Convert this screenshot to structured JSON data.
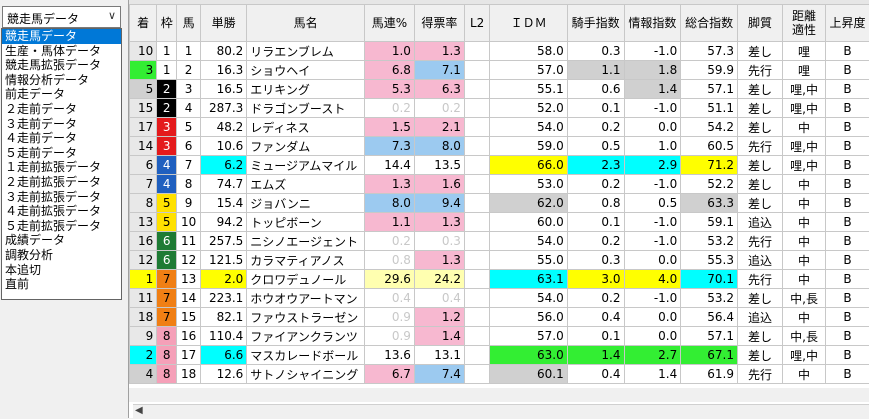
{
  "combo": {
    "value": "競走馬データ",
    "arrow": "∨"
  },
  "menu": {
    "items": [
      "競走馬データ",
      "生産・馬体データ",
      "競走馬拡張データ",
      "情報分析データ",
      "前走データ",
      "２走前データ",
      "３走前データ",
      "４走前データ",
      "５走前データ",
      "１走前拡張データ",
      "２走前拡張データ",
      "３走前拡張データ",
      "４走前拡張データ",
      "５走前拡張データ",
      "成績データ",
      "調教分析",
      "本追切",
      "直前"
    ],
    "selected_index": 0
  },
  "headers": {
    "chaku": "着",
    "waku": "枠",
    "uma": "馬",
    "tansho": "単勝",
    "name": "馬名",
    "renritsu": "馬連%",
    "tokuhyo": "得票率",
    "l2": "L2",
    "idm": "ＩＤＭ",
    "kishu": "騎手指数",
    "joho": "情報指数",
    "sogo": "総合指数",
    "kyakushitsu": "脚質",
    "kyori": "距離適性",
    "joshodo": "上昇度"
  },
  "colors": {
    "pink": "#f7b8d0",
    "blue": "#9ccaf0",
    "yellow": "#ffff00",
    "cyan": "#00ffff",
    "green": "#33ee33",
    "gray": "#d0d0d0",
    "lightyellow": "#ffffb0"
  },
  "rows": [
    {
      "chaku": "10",
      "waku": "1",
      "uma": "1",
      "tansho": "80.2",
      "name": "リラエンブレム",
      "renritsu": "1.0",
      "tokuhyo": "1.3",
      "idm": "58.0",
      "kishu": "0.3",
      "joho": "-1.0",
      "sogo": "57.3",
      "kyakushitsu": "差し",
      "kyori": "哩",
      "joshodo": "B",
      "bg": {
        "renritsu": "pink",
        "tokuhyo": "pink"
      }
    },
    {
      "chaku": "3",
      "waku": "1",
      "uma": "2",
      "tansho": "16.3",
      "name": "ショウヘイ",
      "renritsu": "6.8",
      "tokuhyo": "7.1",
      "idm": "57.0",
      "kishu": "1.1",
      "joho": "1.8",
      "sogo": "59.9",
      "kyakushitsu": "先行",
      "kyori": "哩",
      "joshodo": "B",
      "bg": {
        "chaku": "green",
        "renritsu": "pink",
        "tokuhyo": "blue",
        "kishu": "gray",
        "joho": "gray"
      }
    },
    {
      "chaku": "5",
      "waku": "2",
      "uma": "3",
      "tansho": "16.5",
      "name": "エリキング",
      "renritsu": "5.3",
      "tokuhyo": "6.3",
      "idm": "55.1",
      "kishu": "0.6",
      "joho": "1.4",
      "sogo": "57.1",
      "kyakushitsu": "差し",
      "kyori": "哩,中",
      "joshodo": "B",
      "bg": {
        "chaku": "gray",
        "renritsu": "pink",
        "tokuhyo": "pink",
        "joho": "gray"
      }
    },
    {
      "chaku": "15",
      "waku": "2",
      "uma": "4",
      "tansho": "287.3",
      "name": "ドラゴンブースト",
      "renritsu": "0.2",
      "tokuhyo": "0.2",
      "idm": "52.0",
      "kishu": "0.1",
      "joho": "-1.0",
      "sogo": "51.1",
      "kyakushitsu": "差し",
      "kyori": "哩,中",
      "joshodo": "B",
      "dim": [
        "renritsu",
        "tokuhyo"
      ]
    },
    {
      "chaku": "17",
      "waku": "3",
      "uma": "5",
      "tansho": "48.2",
      "name": "レディネス",
      "renritsu": "1.5",
      "tokuhyo": "2.1",
      "idm": "54.0",
      "kishu": "0.2",
      "joho": "0.0",
      "sogo": "54.2",
      "kyakushitsu": "差し",
      "kyori": "中",
      "joshodo": "B",
      "bg": {
        "renritsu": "pink",
        "tokuhyo": "pink"
      }
    },
    {
      "chaku": "14",
      "waku": "3",
      "uma": "6",
      "tansho": "10.6",
      "name": "ファンダム",
      "renritsu": "7.3",
      "tokuhyo": "8.0",
      "idm": "59.0",
      "kishu": "0.5",
      "joho": "1.0",
      "sogo": "60.5",
      "kyakushitsu": "先行",
      "kyori": "哩,中",
      "joshodo": "B",
      "bg": {
        "renritsu": "blue",
        "tokuhyo": "blue"
      }
    },
    {
      "chaku": "6",
      "waku": "4",
      "uma": "7",
      "tansho": "6.2",
      "name": "ミュージアムマイル",
      "renritsu": "14.4",
      "tokuhyo": "13.5",
      "idm": "66.0",
      "kishu": "2.3",
      "joho": "2.9",
      "sogo": "71.2",
      "kyakushitsu": "差し",
      "kyori": "哩,中",
      "joshodo": "B",
      "bg": {
        "tansho": "cyan",
        "idm": "yellow",
        "kishu": "cyan",
        "joho": "cyan",
        "sogo": "yellow"
      }
    },
    {
      "chaku": "7",
      "waku": "4",
      "uma": "8",
      "tansho": "74.7",
      "name": "エムズ",
      "renritsu": "1.3",
      "tokuhyo": "1.6",
      "idm": "53.0",
      "kishu": "0.2",
      "joho": "-1.0",
      "sogo": "52.2",
      "kyakushitsu": "差し",
      "kyori": "中",
      "joshodo": "B",
      "bg": {
        "renritsu": "pink",
        "tokuhyo": "pink"
      }
    },
    {
      "chaku": "8",
      "waku": "5",
      "uma": "9",
      "tansho": "15.4",
      "name": "ジョバンニ",
      "renritsu": "8.0",
      "tokuhyo": "9.4",
      "idm": "62.0",
      "kishu": "0.8",
      "joho": "0.5",
      "sogo": "63.3",
      "kyakushitsu": "差し",
      "kyori": "中",
      "joshodo": "B",
      "bg": {
        "renritsu": "blue",
        "tokuhyo": "blue",
        "idm": "gray",
        "sogo": "gray"
      }
    },
    {
      "chaku": "13",
      "waku": "5",
      "uma": "10",
      "tansho": "94.2",
      "name": "トッピボーン",
      "renritsu": "1.1",
      "tokuhyo": "1.3",
      "idm": "60.0",
      "kishu": "0.1",
      "joho": "-1.0",
      "sogo": "59.1",
      "kyakushitsu": "追込",
      "kyori": "中",
      "joshodo": "B",
      "bg": {
        "renritsu": "pink",
        "tokuhyo": "pink"
      }
    },
    {
      "chaku": "16",
      "waku": "6",
      "uma": "11",
      "tansho": "257.5",
      "name": "ニシノエージェント",
      "renritsu": "0.2",
      "tokuhyo": "0.3",
      "idm": "54.0",
      "kishu": "0.2",
      "joho": "-1.0",
      "sogo": "53.2",
      "kyakushitsu": "先行",
      "kyori": "中",
      "joshodo": "B",
      "dim": [
        "renritsu",
        "tokuhyo"
      ]
    },
    {
      "chaku": "12",
      "waku": "6",
      "uma": "12",
      "tansho": "121.5",
      "name": "カラマティアノス",
      "renritsu": "0.8",
      "tokuhyo": "1.3",
      "idm": "55.0",
      "kishu": "0.3",
      "joho": "0.0",
      "sogo": "55.3",
      "kyakushitsu": "追込",
      "kyori": "中",
      "joshodo": "B",
      "bg": {
        "tokuhyo": "pink"
      },
      "dim": [
        "renritsu"
      ]
    },
    {
      "chaku": "1",
      "waku": "7",
      "uma": "13",
      "tansho": "2.0",
      "name": "クロワデュノール",
      "renritsu": "29.6",
      "tokuhyo": "24.2",
      "idm": "63.1",
      "kishu": "3.0",
      "joho": "4.0",
      "sogo": "70.1",
      "kyakushitsu": "先行",
      "kyori": "中",
      "joshodo": "B",
      "bg": {
        "chaku": "yellow",
        "tansho": "yellow",
        "renritsu": "lightyellow",
        "tokuhyo": "lightyellow",
        "idm": "cyan",
        "kishu": "yellow",
        "joho": "yellow",
        "sogo": "cyan"
      }
    },
    {
      "chaku": "11",
      "waku": "7",
      "uma": "14",
      "tansho": "223.1",
      "name": "ホウオウアートマン",
      "renritsu": "0.4",
      "tokuhyo": "0.4",
      "idm": "54.0",
      "kishu": "0.2",
      "joho": "-1.0",
      "sogo": "53.2",
      "kyakushitsu": "差し",
      "kyori": "中,長",
      "joshodo": "B",
      "dim": [
        "renritsu",
        "tokuhyo"
      ]
    },
    {
      "chaku": "18",
      "waku": "7",
      "uma": "15",
      "tansho": "82.1",
      "name": "ファウストラーゼン",
      "renritsu": "0.9",
      "tokuhyo": "1.2",
      "idm": "56.0",
      "kishu": "0.4",
      "joho": "0.0",
      "sogo": "56.4",
      "kyakushitsu": "追込",
      "kyori": "中",
      "joshodo": "B",
      "bg": {
        "tokuhyo": "pink"
      },
      "dim": [
        "renritsu"
      ]
    },
    {
      "chaku": "9",
      "waku": "8",
      "uma": "16",
      "tansho": "110.4",
      "name": "ファイアンクランツ",
      "renritsu": "0.9",
      "tokuhyo": "1.4",
      "idm": "57.0",
      "kishu": "0.1",
      "joho": "0.0",
      "sogo": "57.1",
      "kyakushitsu": "差し",
      "kyori": "中,長",
      "joshodo": "B",
      "bg": {
        "tokuhyo": "pink"
      },
      "dim": [
        "renritsu"
      ]
    },
    {
      "chaku": "2",
      "waku": "8",
      "uma": "17",
      "tansho": "6.6",
      "name": "マスカレードボール",
      "renritsu": "13.6",
      "tokuhyo": "13.1",
      "idm": "63.0",
      "kishu": "1.4",
      "joho": "2.7",
      "sogo": "67.1",
      "kyakushitsu": "差し",
      "kyori": "哩,中",
      "joshodo": "B",
      "bg": {
        "chaku": "cyan",
        "tansho": "cyan",
        "idm": "green",
        "kishu": "green",
        "joho": "green",
        "sogo": "green"
      }
    },
    {
      "chaku": "4",
      "waku": "8",
      "uma": "18",
      "tansho": "12.6",
      "name": "サトノシャイニング",
      "renritsu": "6.7",
      "tokuhyo": "7.4",
      "idm": "60.1",
      "kishu": "0.4",
      "joho": "1.4",
      "sogo": "61.9",
      "kyakushitsu": "先行",
      "kyori": "中",
      "joshodo": "B",
      "bg": {
        "chaku": "gray",
        "renritsu": "pink",
        "tokuhyo": "blue",
        "idm": "gray"
      }
    }
  ],
  "scroll_left_arrow": "◀"
}
